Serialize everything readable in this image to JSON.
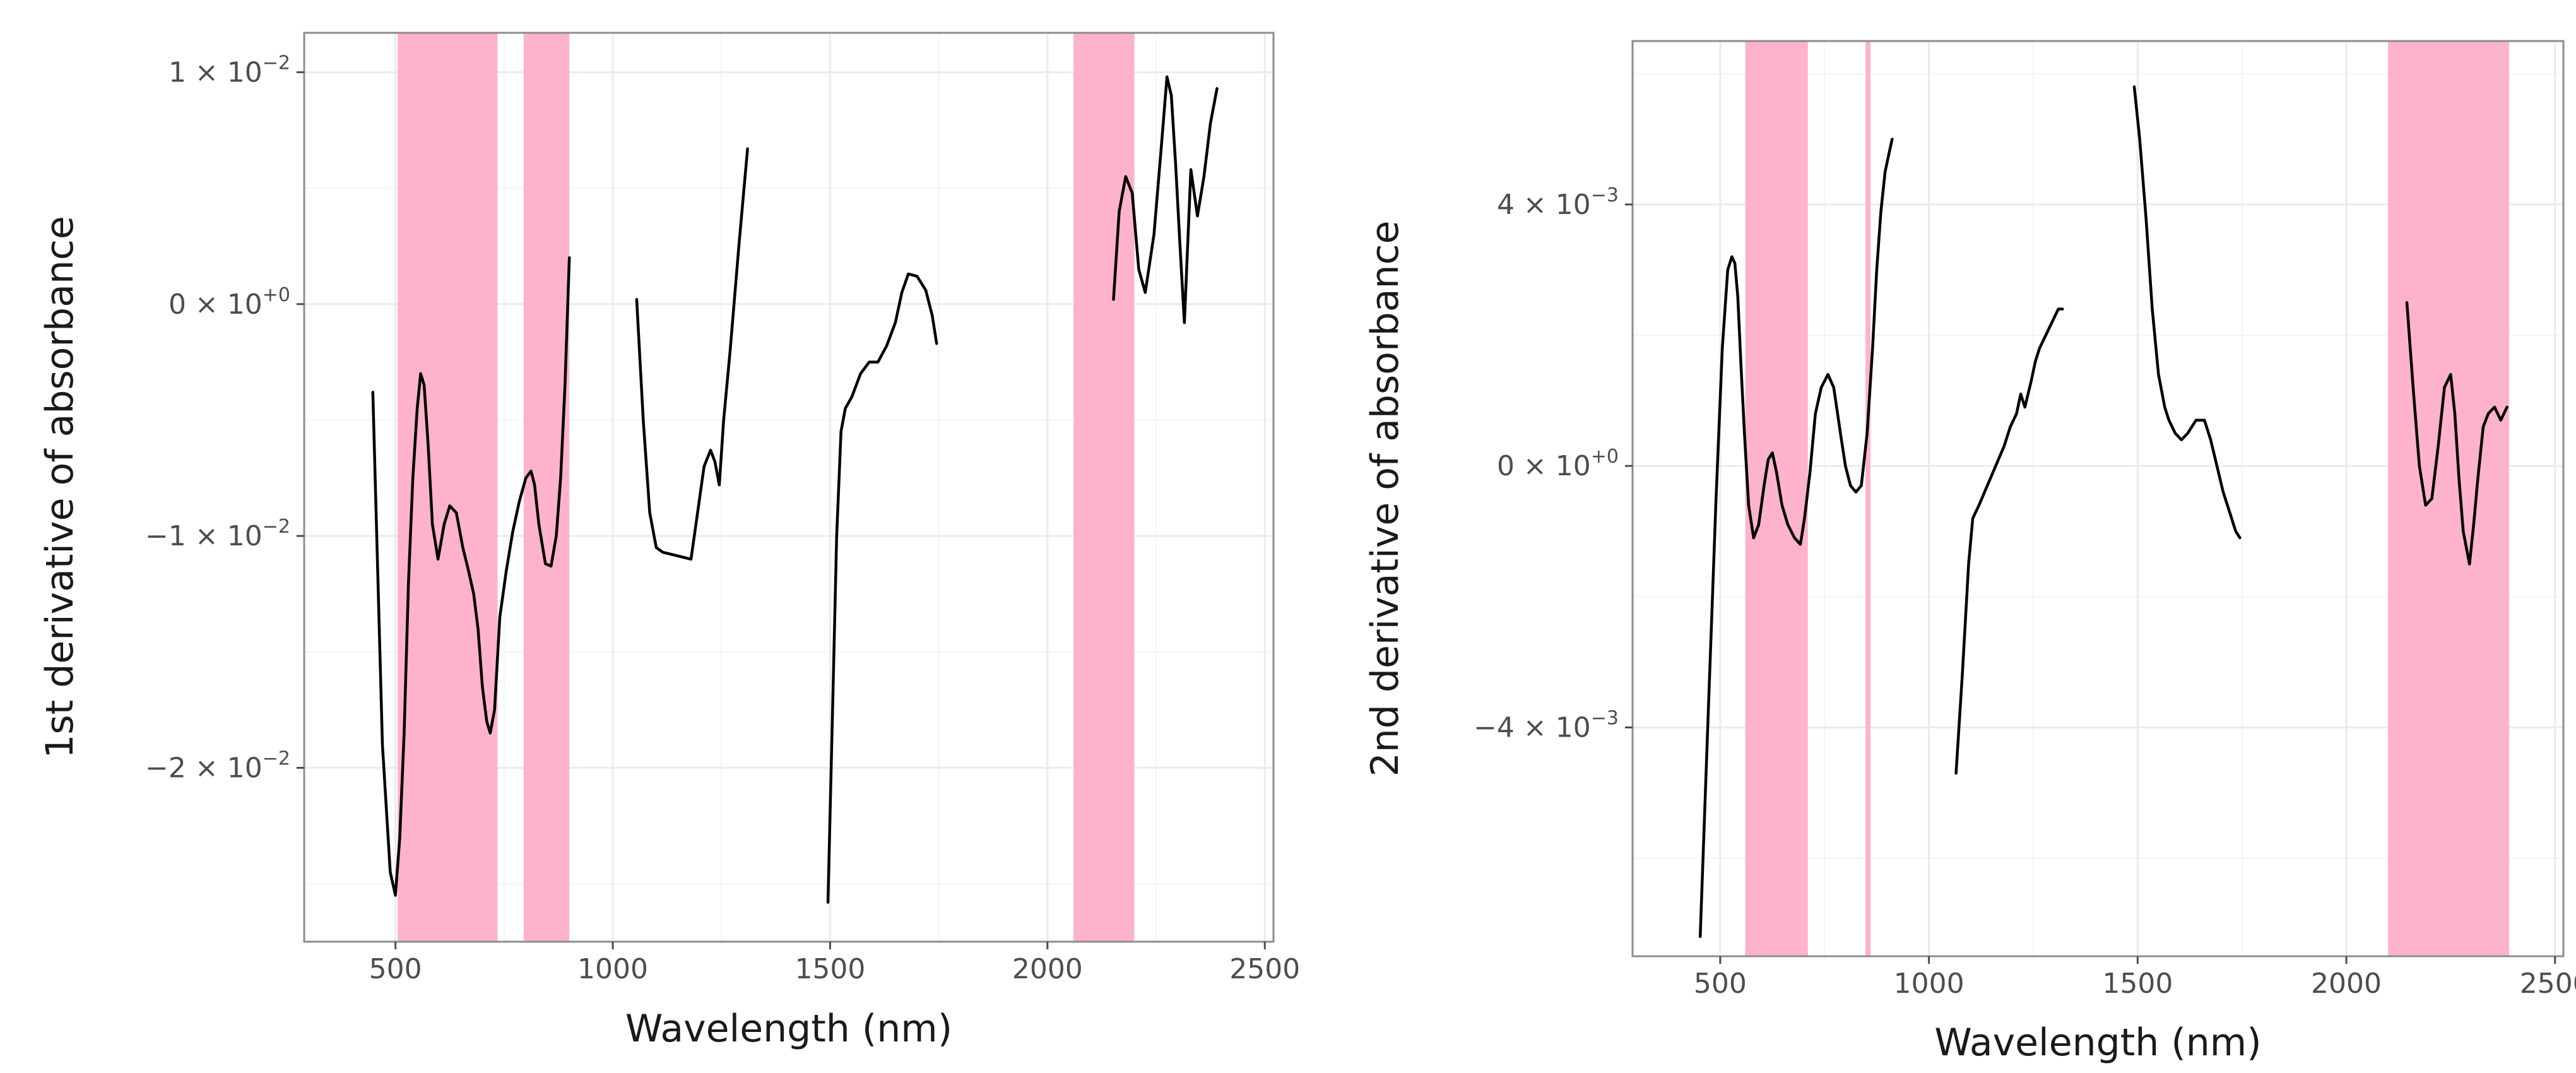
{
  "chart_data": [
    {
      "type": "line",
      "title": "",
      "xlabel": "Wavelength (nm)",
      "ylabel": "1st derivative of absorbance",
      "xlim": [
        290,
        2520
      ],
      "ylim": [
        -0.0275,
        0.0117
      ],
      "xticks": [
        500,
        1000,
        1500,
        2000,
        2500
      ],
      "xtick_labels": [
        "500",
        "1000",
        "1500",
        "2000",
        "2500"
      ],
      "yticks": [
        {
          "value": 0.01,
          "mantissa": "1 × 10",
          "exponent": "−2"
        },
        {
          "value": 0,
          "mantissa": "0 × 10",
          "exponent": "+0"
        },
        {
          "value": -0.01,
          "mantissa": "−1 × 10",
          "exponent": "−2"
        },
        {
          "value": -0.02,
          "mantissa": "−2 × 10",
          "exponent": "−2"
        }
      ],
      "grid": true,
      "highlight_color": "#ffb3cb",
      "highlight_bands": [
        [
          505,
          735
        ],
        [
          795,
          900
        ],
        [
          2060,
          2200
        ]
      ],
      "line_color": "#000000",
      "series": [
        {
          "name": "segment-1",
          "x": [
            448,
            470,
            488,
            500,
            510,
            520,
            530,
            540,
            550,
            558,
            566,
            575,
            585,
            598,
            612,
            625,
            640,
            655,
            668,
            680,
            690,
            700,
            710,
            718,
            728,
            740,
            755,
            770,
            785,
            800,
            812,
            820,
            830,
            845,
            858,
            870,
            880,
            890,
            900
          ],
          "y": [
            -0.0038,
            -0.019,
            -0.0245,
            -0.0255,
            -0.023,
            -0.0185,
            -0.012,
            -0.0075,
            -0.0045,
            -0.003,
            -0.0035,
            -0.006,
            -0.0095,
            -0.011,
            -0.0095,
            -0.0087,
            -0.009,
            -0.0105,
            -0.0115,
            -0.0125,
            -0.014,
            -0.0165,
            -0.018,
            -0.0185,
            -0.0175,
            -0.0135,
            -0.0115,
            -0.0098,
            -0.0085,
            -0.0075,
            -0.0072,
            -0.0078,
            -0.0095,
            -0.0112,
            -0.0113,
            -0.01,
            -0.0075,
            -0.0035,
            0.002
          ]
        },
        {
          "name": "segment-2",
          "x": [
            1055,
            1070,
            1085,
            1100,
            1115,
            1180,
            1195,
            1210,
            1225,
            1235,
            1245,
            1255,
            1270,
            1290,
            1310
          ],
          "y": [
            0.0002,
            -0.005,
            -0.009,
            -0.0105,
            -0.0107,
            -0.011,
            -0.009,
            -0.007,
            -0.0063,
            -0.0068,
            -0.0078,
            -0.005,
            -0.002,
            0.0025,
            0.0067
          ]
        },
        {
          "name": "segment-3",
          "x": [
            1495,
            1505,
            1515,
            1525,
            1535,
            1550,
            1570,
            1590,
            1610,
            1630,
            1650,
            1665,
            1680,
            1700,
            1720,
            1735,
            1745
          ],
          "y": [
            -0.0258,
            -0.018,
            -0.01,
            -0.0055,
            -0.0045,
            -0.004,
            -0.003,
            -0.0025,
            -0.0025,
            -0.0018,
            -0.0008,
            0.0005,
            0.0013,
            0.0012,
            0.0006,
            -0.0005,
            -0.0017
          ]
        },
        {
          "name": "segment-4",
          "x": [
            2152,
            2165,
            2180,
            2195,
            2210,
            2225,
            2245,
            2262,
            2275,
            2285,
            2295,
            2305,
            2315,
            2330,
            2345,
            2360,
            2375,
            2390
          ],
          "y": [
            0.0002,
            0.004,
            0.0055,
            0.0048,
            0.0015,
            0.0005,
            0.003,
            0.0068,
            0.0098,
            0.009,
            0.006,
            0.0025,
            -0.0008,
            0.0058,
            0.0038,
            0.0055,
            0.0078,
            0.0093
          ]
        }
      ]
    },
    {
      "type": "line",
      "title": "",
      "xlabel": "Wavelength (nm)",
      "ylabel": "2nd derivative of absorbance",
      "xlim": [
        290,
        2520
      ],
      "ylim": [
        -0.0075,
        0.0065
      ],
      "xticks": [
        500,
        1000,
        1500,
        2000,
        2500
      ],
      "xtick_labels": [
        "500",
        "1000",
        "1500",
        "2000",
        "2500"
      ],
      "yticks": [
        {
          "value": 0.004,
          "mantissa": "4 × 10",
          "exponent": "−3"
        },
        {
          "value": 0,
          "mantissa": "0 × 10",
          "exponent": "+0"
        },
        {
          "value": -0.004,
          "mantissa": "−4 × 10",
          "exponent": "−3"
        }
      ],
      "grid": true,
      "highlight_color": "#ffb3cb",
      "highlight_bands": [
        [
          560,
          710
        ],
        [
          848,
          860
        ],
        [
          2100,
          2390
        ]
      ],
      "line_color": "#000000",
      "series": [
        {
          "name": "segment-1",
          "x": [
            452,
            470,
            490,
            505,
            518,
            528,
            535,
            542,
            550,
            558,
            568,
            580,
            592,
            605,
            615,
            625,
            635,
            648,
            662,
            678,
            692,
            702,
            715,
            728,
            742,
            758,
            772,
            788,
            800,
            812,
            825,
            838,
            852,
            865,
            875,
            885,
            895,
            905,
            912
          ],
          "y": [
            -0.0072,
            -0.004,
            -0.0005,
            0.0018,
            0.003,
            0.0032,
            0.0031,
            0.0026,
            0.0015,
            0.0005,
            -0.0006,
            -0.0011,
            -0.0009,
            -0.0003,
            0.0001,
            0.0002,
            -0.0001,
            -0.0006,
            -0.0009,
            -0.0011,
            -0.0012,
            -0.0008,
            -0.0001,
            0.0008,
            0.0012,
            0.0014,
            0.0012,
            0.0005,
            0.0,
            -0.0003,
            -0.0004,
            -0.0003,
            0.0005,
            0.0018,
            0.003,
            0.0039,
            0.0045,
            0.0048,
            0.005
          ]
        },
        {
          "name": "segment-2",
          "x": [
            1065,
            1080,
            1095,
            1105,
            1120,
            1140,
            1160,
            1180,
            1195,
            1210,
            1220,
            1230,
            1245,
            1255,
            1265,
            1280,
            1295,
            1310,
            1320
          ],
          "y": [
            -0.0047,
            -0.0032,
            -0.0015,
            -0.0008,
            -0.0006,
            -0.0003,
            0.0,
            0.0003,
            0.0006,
            0.0008,
            0.0011,
            0.0009,
            0.0013,
            0.0016,
            0.0018,
            0.002,
            0.0022,
            0.0024,
            0.0024
          ]
        },
        {
          "name": "segment-3",
          "x": [
            1492,
            1505,
            1520,
            1535,
            1550,
            1565,
            1575,
            1590,
            1605,
            1620,
            1640,
            1660,
            1675,
            1690,
            1705,
            1720,
            1735,
            1745
          ],
          "y": [
            0.0058,
            0.005,
            0.0038,
            0.0024,
            0.0014,
            0.0009,
            0.0007,
            0.0005,
            0.0004,
            0.0005,
            0.0007,
            0.0007,
            0.0004,
            0.0,
            -0.0004,
            -0.0007,
            -0.001,
            -0.0011
          ]
        },
        {
          "name": "segment-4",
          "x": [
            2145,
            2160,
            2175,
            2190,
            2205,
            2220,
            2235,
            2250,
            2260,
            2270,
            2280,
            2295,
            2305,
            2315,
            2328,
            2340,
            2355,
            2370,
            2385
          ],
          "y": [
            0.0025,
            0.0012,
            0.0,
            -0.0006,
            -0.0005,
            0.0003,
            0.0012,
            0.0014,
            0.0008,
            -0.0002,
            -0.001,
            -0.0015,
            -0.0009,
            -0.0002,
            0.0006,
            0.0008,
            0.0009,
            0.0007,
            0.0009
          ]
        }
      ]
    }
  ]
}
